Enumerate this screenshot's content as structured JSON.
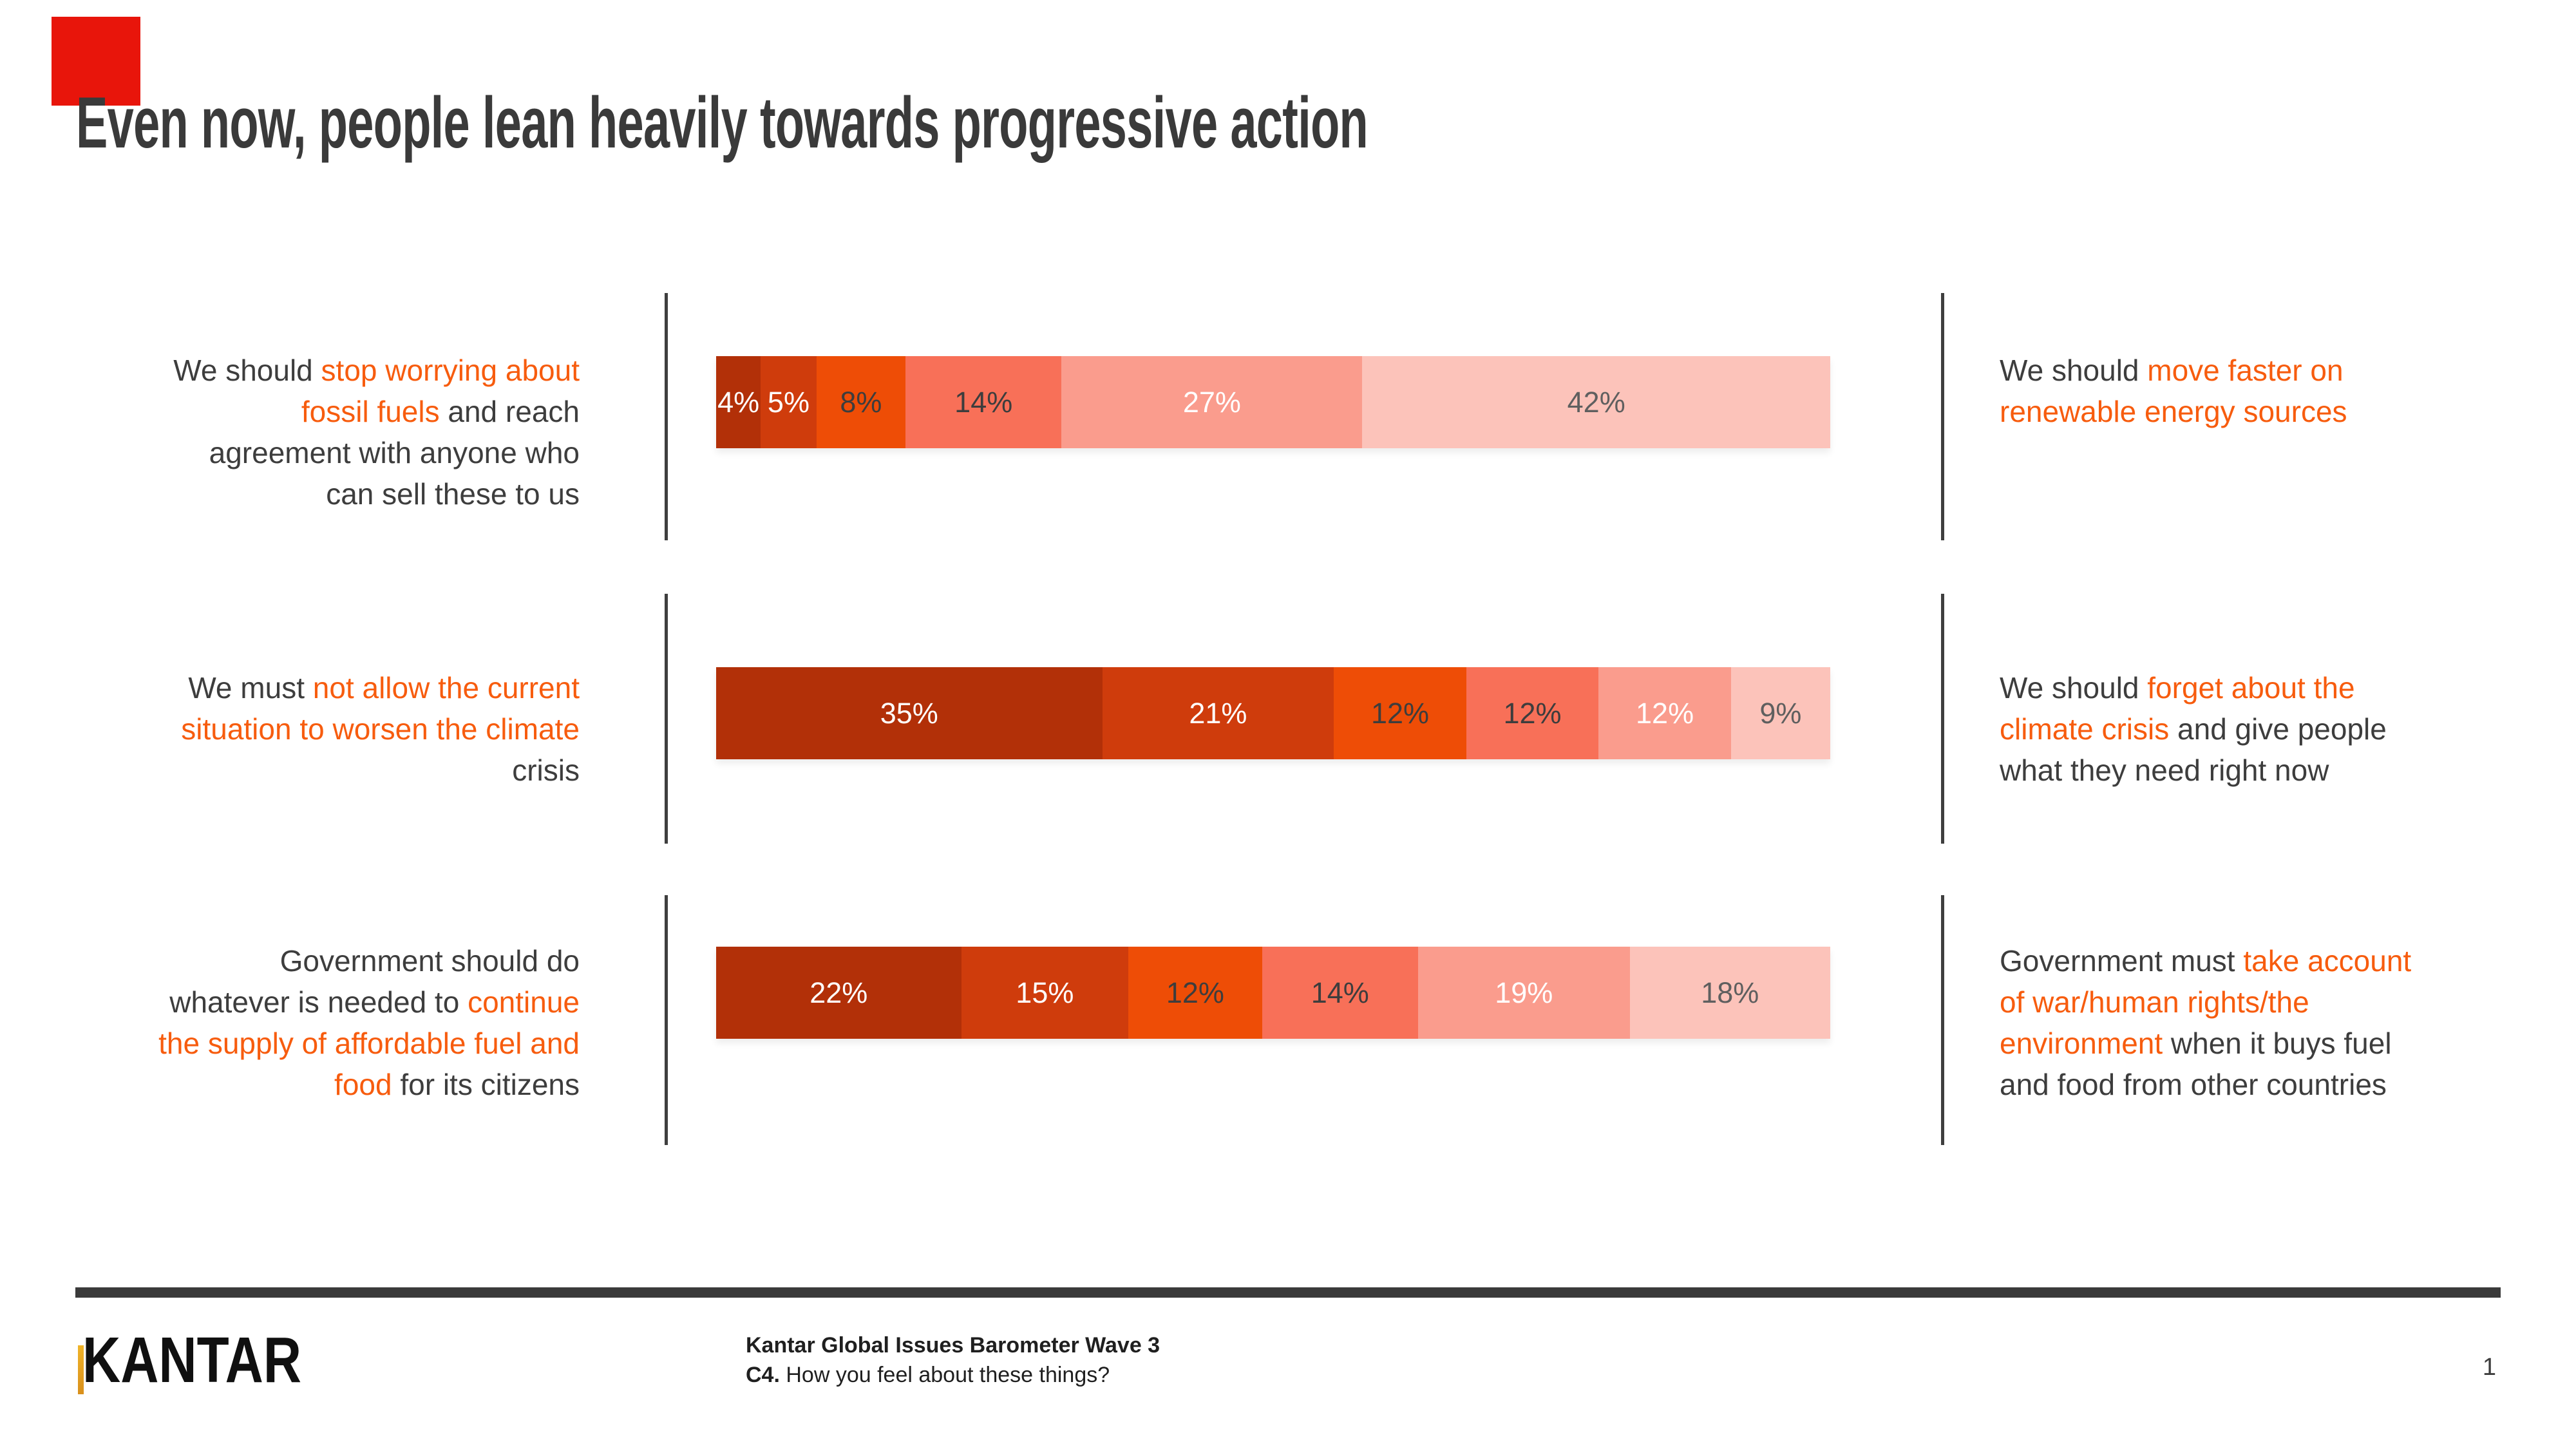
{
  "slide": {
    "title": "Even now, people lean heavily towards progressive action",
    "page_number": "1"
  },
  "footer": {
    "source_line1": "Kantar Global Issues Barometer Wave 3",
    "source_line2_bold": "C4.",
    "source_line2_rest": " How you feel about these things?",
    "logo_text": "KANTAR"
  },
  "colors": {
    "title_text": "#3a3a3a",
    "dark_text": "#3d3d3d",
    "orange_text": "#f75c0e",
    "divider": "#3f3f3f",
    "footer_rule": "#3a3a3a",
    "footer_text": "#1f1f1f",
    "accent_square": "#e8150b",
    "logo_gold_top": "#f0b429",
    "logo_gold_bottom": "#d9901c",
    "segment_palette": [
      "#b23008",
      "#cf3c0c",
      "#ee4d06",
      "#f87058",
      "#fa9c8d",
      "#fcc3ba"
    ],
    "segment_label_colors": [
      "#ffffff",
      "#ffffff",
      "#3d3d3d",
      "#3d3d3d",
      "#ffffff",
      "#5f5f5f"
    ]
  },
  "chart_data": {
    "type": "bar",
    "orientation": "horizontal",
    "stacked": true,
    "unit": "%",
    "title": "Even now, people lean heavily towards progressive action",
    "legend_position": "none",
    "grid": false,
    "rows": [
      {
        "left_statement": "We should stop worrying about fossil fuels and reach agreement with anyone who can sell these to us",
        "right_statement": "We should move faster on renewable energy sources",
        "values": [
          4,
          5,
          8,
          14,
          27,
          42
        ],
        "labels": [
          "4%",
          "5%",
          "8%",
          "14%",
          "27%",
          "42%"
        ],
        "left_lines": [
          [
            {
              "t": "We should ",
              "o": 0
            },
            {
              "t": "stop worrying about",
              "o": 1
            }
          ],
          [
            {
              "t": "fossil fuels",
              "o": 1
            },
            {
              "t": " and reach",
              "o": 0
            }
          ],
          [
            {
              "t": "agreement with anyone who",
              "o": 0
            }
          ],
          [
            {
              "t": "can sell these to us",
              "o": 0
            }
          ]
        ],
        "right_lines": [
          [
            {
              "t": "We should ",
              "o": 0
            },
            {
              "t": "move faster on",
              "o": 1
            }
          ],
          [
            {
              "t": "renewable energy sources",
              "o": 1
            }
          ]
        ]
      },
      {
        "left_statement": "We must not allow the current situation to worsen the climate crisis",
        "right_statement": "We should forget about the climate crisis and give people what they need right now",
        "values": [
          35,
          21,
          12,
          12,
          12,
          9
        ],
        "labels": [
          "35%",
          "21%",
          "12%",
          "12%",
          "12%",
          "9%"
        ],
        "left_lines": [
          [
            {
              "t": "We must ",
              "o": 0
            },
            {
              "t": "not allow the current",
              "o": 1
            }
          ],
          [
            {
              "t": "situation to worsen the climate",
              "o": 1
            }
          ],
          [
            {
              "t": "crisis",
              "o": 0
            }
          ]
        ],
        "right_lines": [
          [
            {
              "t": "We should ",
              "o": 0
            },
            {
              "t": "forget about the",
              "o": 1
            }
          ],
          [
            {
              "t": "climate crisis",
              "o": 1
            },
            {
              "t": " and give people",
              "o": 0
            }
          ],
          [
            {
              "t": "what they need right now",
              "o": 0
            }
          ]
        ]
      },
      {
        "left_statement": "Government should do whatever is needed to continue the supply of affordable fuel and food for its citizens",
        "right_statement": "Government must take account of war/human rights/the environment when it buys fuel and food from other countries",
        "values": [
          22,
          15,
          12,
          14,
          19,
          18
        ],
        "labels": [
          "22%",
          "15%",
          "12%",
          "14%",
          "19%",
          "18%"
        ],
        "left_lines": [
          [
            {
              "t": "Government should do",
              "o": 0
            }
          ],
          [
            {
              "t": "whatever is needed to ",
              "o": 0
            },
            {
              "t": "continue",
              "o": 1
            }
          ],
          [
            {
              "t": "the supply of affordable fuel and",
              "o": 1
            }
          ],
          [
            {
              "t": "food",
              "o": 1
            },
            {
              "t": " for its citizens",
              "o": 0
            }
          ]
        ],
        "right_lines": [
          [
            {
              "t": "Government must ",
              "o": 0
            },
            {
              "t": "take account",
              "o": 1
            }
          ],
          [
            {
              "t": "of war/human rights/the",
              "o": 1
            }
          ],
          [
            {
              "t": "environment",
              "o": 1
            },
            {
              "t": " when it buys fuel",
              "o": 0
            }
          ],
          [
            {
              "t": "and food from other countries",
              "o": 0
            }
          ]
        ]
      }
    ]
  }
}
